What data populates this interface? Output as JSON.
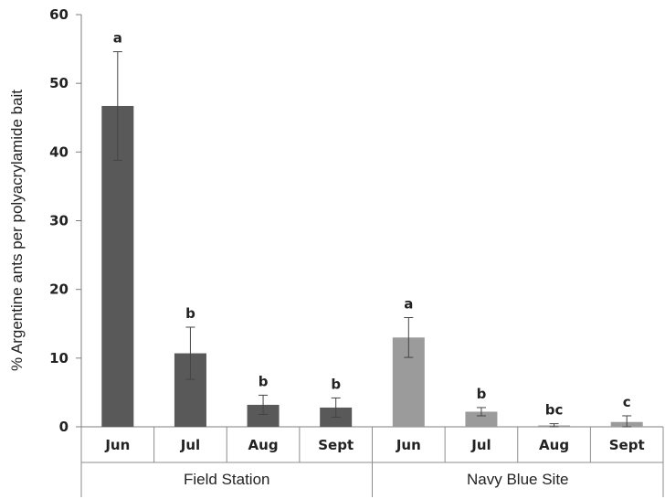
{
  "chart_data": {
    "type": "bar",
    "title": "",
    "ylabel": "% Argentine ants per polyacrylamide bait",
    "ylim": [
      0,
      60
    ],
    "yticks": [
      0,
      10,
      20,
      30,
      40,
      50,
      60
    ],
    "grid": false,
    "groups": [
      {
        "name": "Field Station",
        "color": "#595959",
        "categories": [
          "Jun",
          "Jul",
          "Aug",
          "Sept"
        ],
        "values": [
          46.7,
          10.7,
          3.2,
          2.8
        ],
        "errors": [
          7.9,
          3.8,
          1.4,
          1.4
        ],
        "significance": [
          "a",
          "b",
          "b",
          "b"
        ]
      },
      {
        "name": "Navy Blue Site",
        "color": "#9b9b9b",
        "categories": [
          "Jun",
          "Jul",
          "Aug",
          "Sept"
        ],
        "values": [
          13.0,
          2.2,
          0.2,
          0.7
        ],
        "errors": [
          2.9,
          0.6,
          0.25,
          0.9
        ],
        "significance": [
          "a",
          "b",
          "bc",
          "c"
        ]
      }
    ]
  }
}
